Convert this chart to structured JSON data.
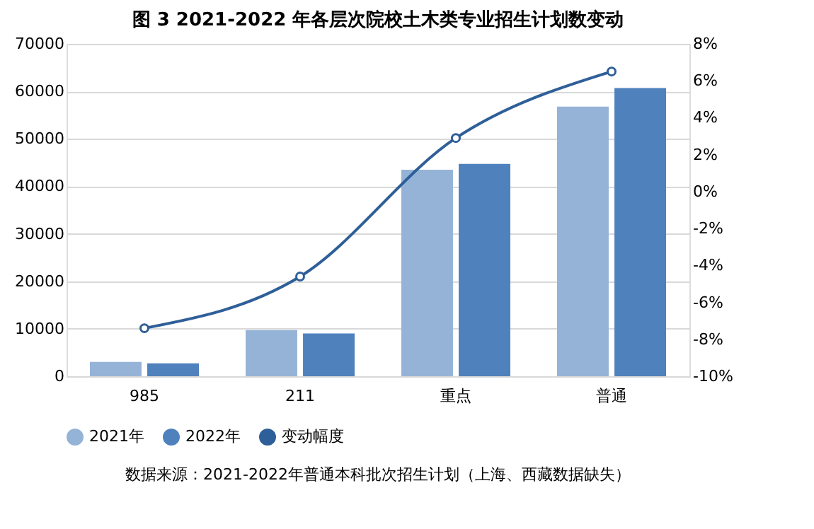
{
  "chart_data": {
    "type": "bar",
    "title": "图 3 2021-2022 年各层次院校土木类专业招生计划数变动",
    "categories": [
      "985",
      "211",
      "重点",
      "普通"
    ],
    "series": [
      {
        "name": "2021年",
        "color": "#95b3d7",
        "values": [
          3000,
          9700,
          43500,
          56800
        ]
      },
      {
        "name": "2022年",
        "color": "#4f81bd",
        "values": [
          2700,
          9000,
          44700,
          60700
        ]
      },
      {
        "name": "变动幅度",
        "color": "#2f5f98",
        "type": "line",
        "axis": "y2",
        "marker": "circle",
        "values": [
          -7.4,
          -4.6,
          2.9,
          6.5
        ]
      }
    ],
    "ylim": [
      0,
      70000
    ],
    "yticks": [
      0,
      10000,
      20000,
      30000,
      40000,
      50000,
      60000,
      70000
    ],
    "y2lim": [
      -10,
      8
    ],
    "y2ticks": [
      {
        "value": -10,
        "label": "-10%"
      },
      {
        "value": -8,
        "label": "-8%"
      },
      {
        "value": -6,
        "label": "-6%"
      },
      {
        "value": -4,
        "label": "-4%"
      },
      {
        "value": -2,
        "label": "-2%"
      },
      {
        "value": 0,
        "label": "0%"
      },
      {
        "value": 2,
        "label": "2%"
      },
      {
        "value": 4,
        "label": "4%"
      },
      {
        "value": 6,
        "label": "6%"
      },
      {
        "value": 8,
        "label": "8%"
      }
    ],
    "grid": "y",
    "legend": "bottom",
    "annotations": [
      "数据来源：2021-2022年普通本科批次招生计划（上海、西藏数据缺失）"
    ]
  }
}
